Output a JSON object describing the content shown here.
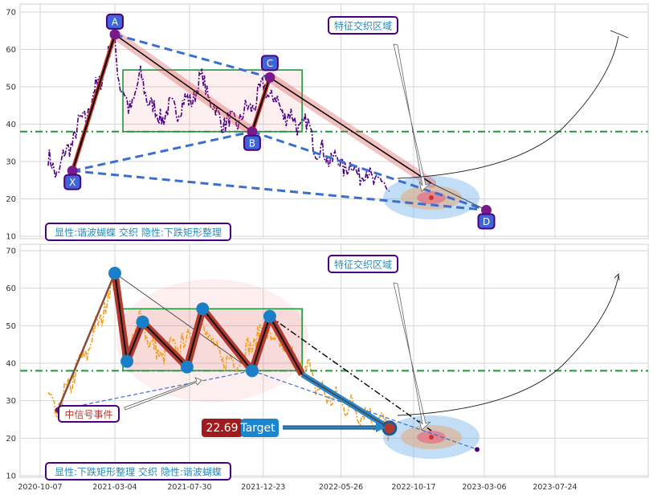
{
  "x_ticks": [
    "2020-10-07",
    "2021-03-04",
    "2021-07-30",
    "2021-12-23",
    "2022-05-26",
    "2022-10-17",
    "2023-03-06",
    "2023-07-24"
  ],
  "panels": [
    {
      "id": "top",
      "y_ticks": [
        10,
        20,
        30,
        40,
        50,
        60,
        70
      ],
      "ylim": [
        10,
        71
      ],
      "h_line": 38,
      "region_label": "特征交织区域",
      "info_label": "显性:谐波蝴蝶 交织 隐性:下跌矩形整理"
    },
    {
      "id": "bottom",
      "y_ticks": [
        10,
        20,
        30,
        40,
        50,
        60,
        70
      ],
      "ylim": [
        10,
        71
      ],
      "h_line": 38,
      "region_label": "特征交织区域",
      "info_label": "显性:下跌矩形整理 交织 隐性:谐波蝴蝶",
      "signal_label": "中信号事件",
      "target_value": "22.69",
      "target_label": "Target"
    }
  ],
  "colors": {
    "price_top": "#4b0082",
    "price_bottom": "#f0a020",
    "pattern_line": "#000000",
    "dashed_blue": "#3a6fd0",
    "green_box": "#1a9a3a",
    "h_line": "#1a9a3a",
    "label_border": "#4b0082",
    "label_text": "#2a8ab8",
    "point_marker": "#1a7ec8",
    "zigzag": "#b03a2e"
  },
  "chart_data": [
    {
      "type": "line",
      "title": "",
      "series": [
        {
          "values": []
        }
      ],
      "pattern_points": [
        {
          "label": "X",
          "x": "2020-12-10",
          "y": 27.5
        },
        {
          "label": "A",
          "x": "2021-03-04",
          "y": 64
        },
        {
          "label": "B",
          "x": "2021-12-01",
          "y": 38
        },
        {
          "label": "C",
          "x": "2022-01-05",
          "y": 52.5
        },
        {
          "label": "D",
          "x": "2023-03-10",
          "y": 17
        }
      ],
      "rectangle": {
        "x0": "2021-03-20",
        "x1": "2022-03-10",
        "y0": 38,
        "y1": 54.5
      },
      "ylim": [
        10,
        71
      ],
      "grid": true
    },
    {
      "type": "line",
      "title": "",
      "zigzag_points": [
        {
          "x": "2021-03-04",
          "y": 64
        },
        {
          "x": "2021-03-28",
          "y": 40.5
        },
        {
          "x": "2021-04-28",
          "y": 51
        },
        {
          "x": "2021-07-25",
          "y": 39
        },
        {
          "x": "2021-08-25",
          "y": 54.5
        },
        {
          "x": "2021-12-01",
          "y": 38
        },
        {
          "x": "2022-01-05",
          "y": 52.5
        },
        {
          "x": "2022-03-10",
          "y": 37
        },
        {
          "x": "2022-08-30",
          "y": 22.69
        }
      ],
      "rectangle": {
        "x0": "2021-03-20",
        "x1": "2022-03-10",
        "y0": 38,
        "y1": 54.5
      },
      "target": 22.69,
      "ylim": [
        10,
        71
      ],
      "grid": true
    }
  ]
}
